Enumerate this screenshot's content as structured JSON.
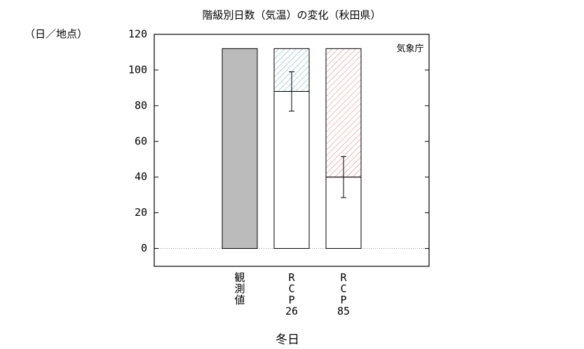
{
  "chart_data": {
    "type": "bar",
    "title": "階級別日数（気温）の変化（秋田県）",
    "y_unit": "（日／地点）",
    "annotation": "気象庁",
    "x_label": "冬日",
    "categories": [
      "観測値",
      "RCP26",
      "RCP85"
    ],
    "series": [
      {
        "color": "#bbbbbb",
        "values": [
          112,
          null,
          null
        ]
      },
      {
        "color": "#ffffff",
        "values": [
          null,
          88,
          40
        ],
        "errors": [
          null,
          11,
          11.5
        ]
      },
      {
        "colors": [
          "#bbbbbb",
          "#6aaccc",
          "#e07060"
        ],
        "hatch": true,
        "values": [
          null,
          24,
          72
        ]
      }
    ],
    "stacked": true,
    "ylim": [
      -10,
      120
    ],
    "yticks": [
      0,
      20,
      40,
      60,
      80,
      100,
      120
    ]
  }
}
